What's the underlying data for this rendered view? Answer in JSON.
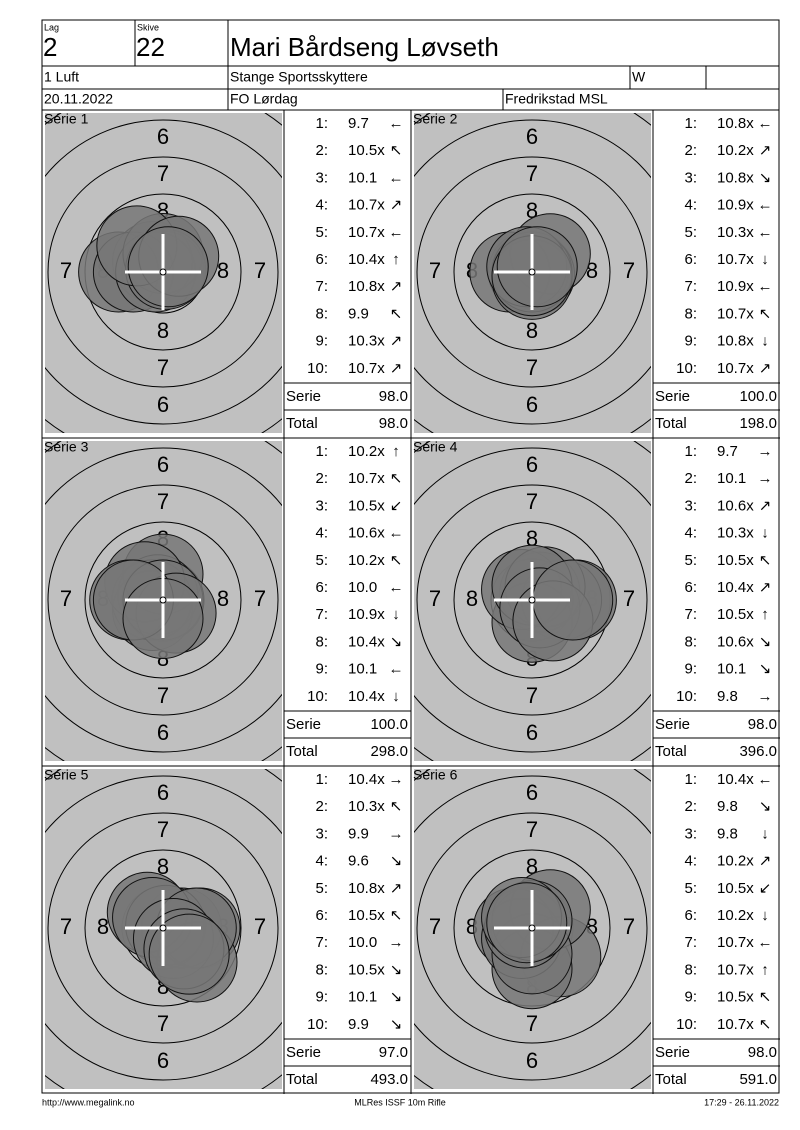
{
  "header": {
    "lag_label": "Lag",
    "lag": "2",
    "skive_label": "Skive",
    "skive": "22",
    "name": "Mari Bårdseng Løvseth",
    "class": "1 Luft",
    "club": "Stange Sportsskyttere",
    "gender": "W",
    "date": "20.11.2022",
    "event": "FO Lørdag",
    "place": "Fredrikstad MSL"
  },
  "target_rings": [
    6,
    7,
    8
  ],
  "serie_label": "Serie",
  "total_label": "Total",
  "series": [
    {
      "title": "Série 1",
      "shots": [
        {
          "n": "1:",
          "score": "9.7",
          "dir": "←"
        },
        {
          "n": "2:",
          "score": "10.5x",
          "dir": "↖"
        },
        {
          "n": "3:",
          "score": "10.1",
          "dir": "←"
        },
        {
          "n": "4:",
          "score": "10.7x",
          "dir": "↗"
        },
        {
          "n": "5:",
          "score": "10.7x",
          "dir": "←"
        },
        {
          "n": "6:",
          "score": "10.4x",
          "dir": "↑"
        },
        {
          "n": "7:",
          "score": "10.8x",
          "dir": "↗"
        },
        {
          "n": "8:",
          "score": "9.9",
          "dir": "↖"
        },
        {
          "n": "9:",
          "score": "10.3x",
          "dir": "↗"
        },
        {
          "n": "10:",
          "score": "10.7x",
          "dir": "↗"
        }
      ],
      "serie": "98.0",
      "total": "98.0"
    },
    {
      "title": "Série 2",
      "shots": [
        {
          "n": "1:",
          "score": "10.8x",
          "dir": "←"
        },
        {
          "n": "2:",
          "score": "10.2x",
          "dir": "↗"
        },
        {
          "n": "3:",
          "score": "10.8x",
          "dir": "↘"
        },
        {
          "n": "4:",
          "score": "10.9x",
          "dir": "←"
        },
        {
          "n": "5:",
          "score": "10.3x",
          "dir": "←"
        },
        {
          "n": "6:",
          "score": "10.7x",
          "dir": "↓"
        },
        {
          "n": "7:",
          "score": "10.9x",
          "dir": "←"
        },
        {
          "n": "8:",
          "score": "10.7x",
          "dir": "↖"
        },
        {
          "n": "9:",
          "score": "10.8x",
          "dir": "↓"
        },
        {
          "n": "10:",
          "score": "10.7x",
          "dir": "↗"
        }
      ],
      "serie": "100.0",
      "total": "198.0"
    },
    {
      "title": "Série 3",
      "shots": [
        {
          "n": "1:",
          "score": "10.2x",
          "dir": "↑"
        },
        {
          "n": "2:",
          "score": "10.7x",
          "dir": "↖"
        },
        {
          "n": "3:",
          "score": "10.5x",
          "dir": "↙"
        },
        {
          "n": "4:",
          "score": "10.6x",
          "dir": "←"
        },
        {
          "n": "5:",
          "score": "10.2x",
          "dir": "↖"
        },
        {
          "n": "6:",
          "score": "10.0",
          "dir": "←"
        },
        {
          "n": "7:",
          "score": "10.9x",
          "dir": "↓"
        },
        {
          "n": "8:",
          "score": "10.4x",
          "dir": "↘"
        },
        {
          "n": "9:",
          "score": "10.1",
          "dir": "←"
        },
        {
          "n": "10:",
          "score": "10.4x",
          "dir": "↓"
        }
      ],
      "serie": "100.0",
      "total": "298.0"
    },
    {
      "title": "Série 4",
      "shots": [
        {
          "n": "1:",
          "score": "9.7",
          "dir": "→"
        },
        {
          "n": "2:",
          "score": "10.1",
          "dir": "→"
        },
        {
          "n": "3:",
          "score": "10.6x",
          "dir": "↗"
        },
        {
          "n": "4:",
          "score": "10.3x",
          "dir": "↓"
        },
        {
          "n": "5:",
          "score": "10.5x",
          "dir": "↖"
        },
        {
          "n": "6:",
          "score": "10.4x",
          "dir": "↗"
        },
        {
          "n": "7:",
          "score": "10.5x",
          "dir": "↑"
        },
        {
          "n": "8:",
          "score": "10.6x",
          "dir": "↘"
        },
        {
          "n": "9:",
          "score": "10.1",
          "dir": "↘"
        },
        {
          "n": "10:",
          "score": "9.8",
          "dir": "→"
        }
      ],
      "serie": "98.0",
      "total": "396.0"
    },
    {
      "title": "Série 5",
      "shots": [
        {
          "n": "1:",
          "score": "10.4x",
          "dir": "→"
        },
        {
          "n": "2:",
          "score": "10.3x",
          "dir": "↖"
        },
        {
          "n": "3:",
          "score": "9.9",
          "dir": "→"
        },
        {
          "n": "4:",
          "score": "9.6",
          "dir": "↘"
        },
        {
          "n": "5:",
          "score": "10.8x",
          "dir": "↗"
        },
        {
          "n": "6:",
          "score": "10.5x",
          "dir": "↖"
        },
        {
          "n": "7:",
          "score": "10.0",
          "dir": "→"
        },
        {
          "n": "8:",
          "score": "10.5x",
          "dir": "↘"
        },
        {
          "n": "9:",
          "score": "10.1",
          "dir": "↘"
        },
        {
          "n": "10:",
          "score": "9.9",
          "dir": "↘"
        }
      ],
      "serie": "97.0",
      "total": "493.0"
    },
    {
      "title": "Série 6",
      "shots": [
        {
          "n": "1:",
          "score": "10.4x",
          "dir": "←"
        },
        {
          "n": "2:",
          "score": "9.8",
          "dir": "↘"
        },
        {
          "n": "3:",
          "score": "9.8",
          "dir": "↓"
        },
        {
          "n": "4:",
          "score": "10.2x",
          "dir": "↗"
        },
        {
          "n": "5:",
          "score": "10.5x",
          "dir": "↙"
        },
        {
          "n": "6:",
          "score": "10.2x",
          "dir": "↓"
        },
        {
          "n": "7:",
          "score": "10.7x",
          "dir": "←"
        },
        {
          "n": "8:",
          "score": "10.7x",
          "dir": "↑"
        },
        {
          "n": "9:",
          "score": "10.5x",
          "dir": "↖"
        },
        {
          "n": "10:",
          "score": "10.7x",
          "dir": "↖"
        }
      ],
      "serie": "98.0",
      "total": "591.0"
    }
  ],
  "footer": {
    "url": "http://www.megalink.no",
    "program": "MLRes ISSF 10m Rifle",
    "timestamp": "17:29 - 26.11.2022"
  }
}
